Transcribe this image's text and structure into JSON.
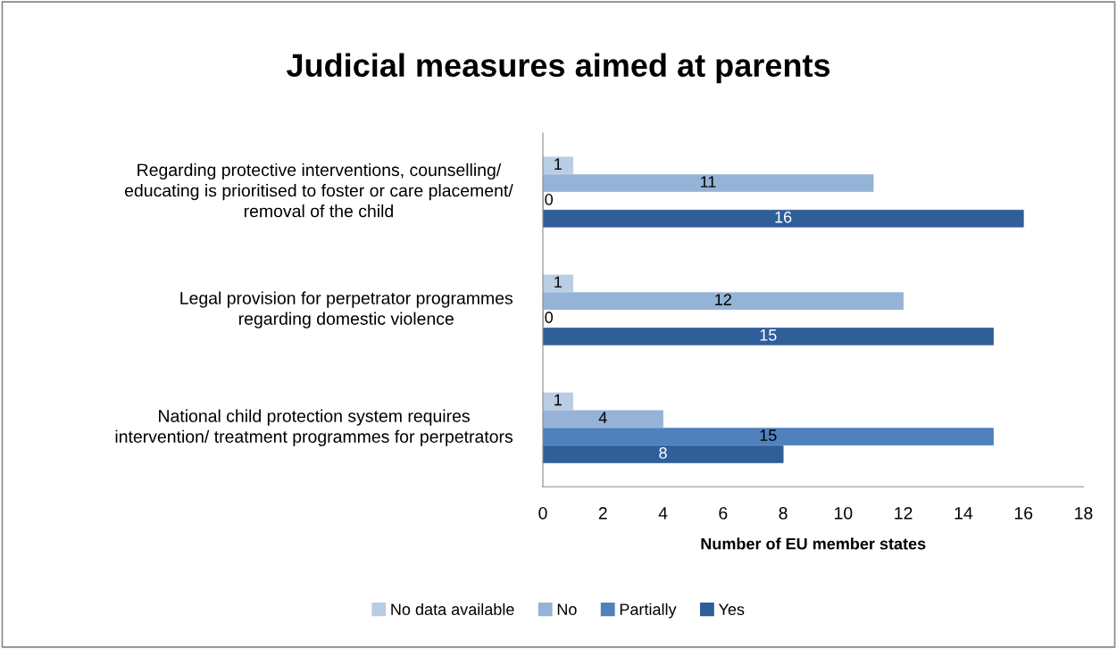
{
  "chart_data": {
    "type": "bar",
    "orientation": "horizontal",
    "title": "Judicial measures aimed at parents",
    "xlabel": "Number of EU member states",
    "categories": [
      "Regarding protective interventions, counselling/ educating is prioritised to foster or care placement/ removal of the child",
      "Legal provision for perpetrator programmes regarding domestic violence",
      "National child protection system requires intervention/ treatment programmes for perpetrators"
    ],
    "series": [
      {
        "name": "No data available",
        "color": "#b9cde5",
        "values": [
          1,
          1,
          1
        ]
      },
      {
        "name": "No",
        "color": "#95b3d7",
        "values": [
          11,
          12,
          4
        ]
      },
      {
        "name": "Partially",
        "color": "#4f81bd",
        "values": [
          0,
          0,
          15
        ]
      },
      {
        "name": "Yes",
        "color": "#2f5e99",
        "values": [
          16,
          15,
          8
        ]
      }
    ],
    "xlim": [
      0,
      18
    ],
    "xticks": [
      0,
      2,
      4,
      6,
      8,
      10,
      12,
      14,
      16,
      18
    ],
    "data_labels": true,
    "grid": false,
    "legend": "bottom"
  }
}
